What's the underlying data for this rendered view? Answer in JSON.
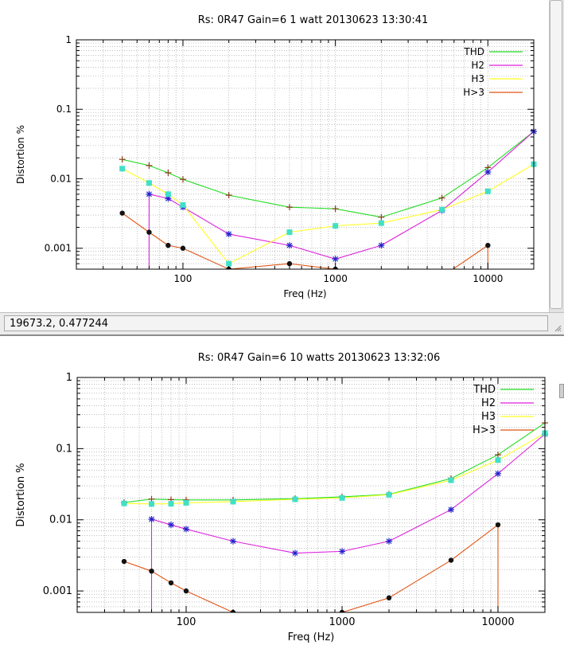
{
  "statusbar": {
    "coords": "19673.2,  0.477244"
  },
  "colors": {
    "thd": "#22dd22",
    "h2": "#dd22dd",
    "h3": "#ffff22",
    "h_gt3": "#e05515",
    "thd_marker": "#8a3c1a",
    "h2_marker": "#2222cc",
    "h3_marker": "#40e0c8",
    "h_gt3_marker": "#111111"
  },
  "chart_data": [
    {
      "type": "line",
      "title": "Rs: 0R47  Gain=6 1 watt 20130623 13:30:41",
      "xlabel": "Freq (Hz)",
      "ylabel": "Distortion %",
      "xscale": "log",
      "yscale": "log",
      "xlim": [
        20,
        20000
      ],
      "ylim": [
        0.0005,
        1
      ],
      "x_tick_labels": [
        "100",
        "1000",
        "10000"
      ],
      "y_tick_labels": [
        "1",
        "0.1",
        "0.01",
        "0.001"
      ],
      "grid": true,
      "legend_position": "top-right",
      "series": [
        {
          "name": "THD",
          "key": "thd",
          "x": [
            40,
            60,
            80,
            100,
            200,
            500,
            1000,
            2000,
            5000,
            10000,
            20000
          ],
          "y": [
            0.019,
            0.0155,
            0.0122,
            0.0098,
            0.0058,
            0.0039,
            0.0037,
            0.0028,
            0.0053,
            0.0145,
            0.048
          ]
        },
        {
          "name": "H2",
          "key": "h2",
          "x": [
            60,
            80,
            100,
            200,
            500,
            1000,
            2000,
            5000,
            10000,
            20000
          ],
          "y": [
            0.006,
            0.0052,
            0.0039,
            0.0016,
            0.0011,
            0.0007,
            0.0011,
            0.0035,
            0.0125,
            0.048
          ],
          "drop_from_floor_at": 60
        },
        {
          "name": "H3",
          "key": "h3",
          "x": [
            40,
            60,
            80,
            100,
            200,
            500,
            1000,
            2000,
            5000,
            10000,
            20000
          ],
          "y": [
            0.014,
            0.0087,
            0.006,
            0.0042,
            0.0006,
            0.0017,
            0.0021,
            0.0023,
            0.0036,
            0.0066,
            0.0162
          ]
        },
        {
          "name": "H>3",
          "key": "h_gt3",
          "x": [
            40,
            60,
            80,
            100,
            200,
            500,
            1000,
            5500,
            10000
          ],
          "y": [
            0.0032,
            0.0017,
            0.0011,
            0.001,
            0.0005,
            0.0006,
            0.0005,
            0.00045,
            0.0011
          ],
          "drop_from_floor_at": 10000
        }
      ]
    },
    {
      "type": "line",
      "title": "Rs: 0R47  Gain=6 10 watts 20130623 13:32:06",
      "xlabel": "Freq (Hz)",
      "ylabel": "Distortion %",
      "xscale": "log",
      "yscale": "log",
      "xlim": [
        20,
        20000
      ],
      "ylim": [
        0.0005,
        1
      ],
      "x_tick_labels": [
        "100",
        "1000",
        "10000"
      ],
      "y_tick_labels": [
        "1",
        "0.1",
        "0.01",
        "0.001"
      ],
      "grid": true,
      "legend_position": "top-right",
      "series": [
        {
          "name": "THD",
          "key": "thd",
          "x": [
            40,
            60,
            80,
            100,
            200,
            500,
            1000,
            2000,
            5000,
            10000,
            20000
          ],
          "y": [
            0.0175,
            0.0195,
            0.0192,
            0.019,
            0.019,
            0.0198,
            0.021,
            0.0228,
            0.038,
            0.082,
            0.23
          ]
        },
        {
          "name": "H2",
          "key": "h2",
          "x": [
            60,
            80,
            100,
            200,
            500,
            1000,
            2000,
            5000,
            10000,
            20000
          ],
          "y": [
            0.0102,
            0.0085,
            0.0074,
            0.005,
            0.0034,
            0.0036,
            0.005,
            0.0139,
            0.0445,
            0.16
          ],
          "drop_from_floor_at": 60
        },
        {
          "name": "H3",
          "key": "h3",
          "x": [
            40,
            60,
            80,
            100,
            200,
            500,
            1000,
            2000,
            5000,
            10000,
            20000
          ],
          "y": [
            0.017,
            0.0167,
            0.0168,
            0.0173,
            0.018,
            0.0194,
            0.0203,
            0.0225,
            0.036,
            0.069,
            0.165
          ]
        },
        {
          "name": "H>3",
          "key": "h_gt3",
          "x": [
            40,
            60,
            80,
            100,
            200,
            1000,
            2000,
            5000,
            10000
          ],
          "y": [
            0.0026,
            0.0019,
            0.0013,
            0.001,
            0.0005,
            0.0005,
            0.0008,
            0.0027,
            0.0085
          ],
          "drop_from_floor_at": 10000
        }
      ]
    }
  ]
}
